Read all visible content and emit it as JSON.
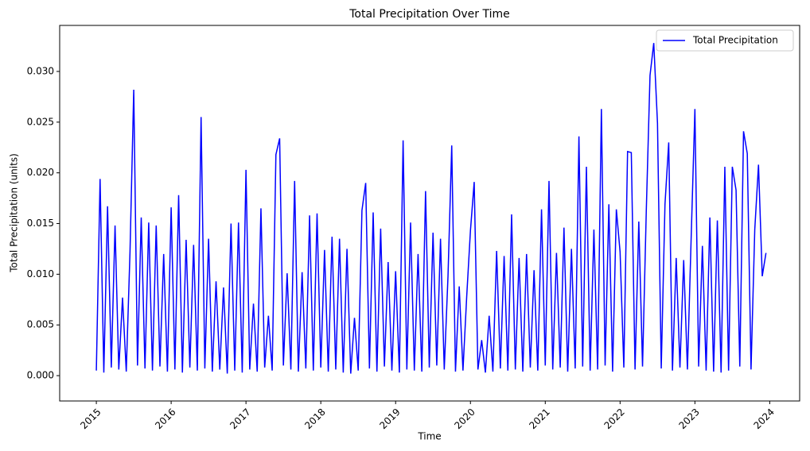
{
  "chart_data": {
    "type": "line",
    "title": "Total Precipitation Over Time",
    "x_label": "Time",
    "y_label": "Total Precipitation (units)",
    "x": [
      2015,
      2015.05,
      2015.1,
      2015.15,
      2015.2,
      2015.25,
      2015.3,
      2015.35,
      2015.4,
      2015.45,
      2015.5,
      2015.55,
      2015.6,
      2015.65,
      2015.7,
      2015.75,
      2015.8,
      2015.85,
      2015.9,
      2015.95,
      2016,
      2016.05,
      2016.1,
      2016.15,
      2016.2,
      2016.25,
      2016.3,
      2016.35,
      2016.4,
      2016.45,
      2016.5,
      2016.55,
      2016.6,
      2016.65,
      2016.7,
      2016.75,
      2016.8,
      2016.85,
      2016.9,
      2016.95,
      2017,
      2017.05,
      2017.1,
      2017.15,
      2017.2,
      2017.25,
      2017.3,
      2017.35,
      2017.4,
      2017.45,
      2017.5,
      2017.55,
      2017.6,
      2017.65,
      2017.7,
      2017.75,
      2017.8,
      2017.85,
      2017.9,
      2017.95,
      2018,
      2018.05,
      2018.1,
      2018.15,
      2018.2,
      2018.25,
      2018.3,
      2018.35,
      2018.4,
      2018.45,
      2018.5,
      2018.55,
      2018.6,
      2018.65,
      2018.7,
      2018.75,
      2018.8,
      2018.85,
      2018.9,
      2018.95,
      2019,
      2019.05,
      2019.1,
      2019.15,
      2019.2,
      2019.25,
      2019.3,
      2019.35,
      2019.4,
      2019.45,
      2019.5,
      2019.55,
      2019.6,
      2019.65,
      2019.7,
      2019.75,
      2019.8,
      2019.85,
      2019.9,
      2019.95,
      2020,
      2020.05,
      2020.1,
      2020.15,
      2020.2,
      2020.25,
      2020.3,
      2020.35,
      2020.4,
      2020.45,
      2020.5,
      2020.55,
      2020.6,
      2020.65,
      2020.7,
      2020.75,
      2020.8,
      2020.85,
      2020.9,
      2020.95,
      2021,
      2021.05,
      2021.1,
      2021.15,
      2021.2,
      2021.25,
      2021.3,
      2021.35,
      2021.4,
      2021.45,
      2021.5,
      2021.55,
      2021.6,
      2021.65,
      2021.7,
      2021.75,
      2021.8,
      2021.85,
      2021.9,
      2021.95,
      2022,
      2022.05,
      2022.1,
      2022.15,
      2022.2,
      2022.25,
      2022.3,
      2022.35,
      2022.4,
      2022.45,
      2022.5,
      2022.55,
      2022.6,
      2022.65,
      2022.7,
      2022.75,
      2022.8,
      2022.85,
      2022.9,
      2022.95,
      2023,
      2023.05,
      2023.1,
      2023.15,
      2023.2,
      2023.25,
      2023.3,
      2023.35,
      2023.4,
      2023.45,
      2023.5,
      2023.55,
      2023.6,
      2023.65,
      2023.7,
      2023.75,
      2023.8,
      2023.85,
      2023.9,
      2023.95
    ],
    "series": [
      {
        "name": "Total Precipitation",
        "color": "#0000ff",
        "values": [
          0.0005,
          0.0194,
          0.0003,
          0.0167,
          0.0008,
          0.0148,
          0.0006,
          0.0077,
          0.0004,
          0.0122,
          0.0282,
          0.001,
          0.0156,
          0.0007,
          0.0151,
          0.0005,
          0.0148,
          0.0009,
          0.012,
          0.0004,
          0.0166,
          0.0006,
          0.0178,
          0.0003,
          0.0134,
          0.0008,
          0.0129,
          0.0005,
          0.0255,
          0.0007,
          0.0135,
          0.0004,
          0.0093,
          0.0006,
          0.0087,
          0.0002,
          0.015,
          0.0005,
          0.0151,
          0.0003,
          0.0203,
          0.0006,
          0.0071,
          0.0004,
          0.0165,
          0.0008,
          0.0059,
          0.0005,
          0.0218,
          0.0234,
          0.001,
          0.0101,
          0.0006,
          0.0192,
          0.0004,
          0.0102,
          0.0007,
          0.0158,
          0.0005,
          0.016,
          0.0008,
          0.0124,
          0.0004,
          0.0137,
          0.0006,
          0.0135,
          0.0003,
          0.0125,
          0.0002,
          0.0057,
          0.0005,
          0.0163,
          0.019,
          0.0007,
          0.0161,
          0.0004,
          0.0145,
          0.0009,
          0.0112,
          0.0005,
          0.0103,
          0.0003,
          0.0232,
          0.0006,
          0.0151,
          0.0005,
          0.012,
          0.0004,
          0.0182,
          0.0008,
          0.0141,
          0.001,
          0.0135,
          0.0006,
          0.0098,
          0.0227,
          0.0004,
          0.0088,
          0.0005,
          0.0078,
          0.0143,
          0.0191,
          0.0006,
          0.0035,
          0.0003,
          0.0059,
          0.0004,
          0.0123,
          0.0007,
          0.0118,
          0.0005,
          0.0159,
          0.0006,
          0.0116,
          0.0004,
          0.012,
          0.0008,
          0.0104,
          0.0005,
          0.0164,
          0.001,
          0.0192,
          0.0006,
          0.0121,
          0.0008,
          0.0146,
          0.0004,
          0.0125,
          0.0007,
          0.0236,
          0.0009,
          0.0206,
          0.0005,
          0.0144,
          0.0006,
          0.0263,
          0.001,
          0.0169,
          0.0004,
          0.0164,
          0.0122,
          0.0008,
          0.0221,
          0.022,
          0.0006,
          0.0152,
          0.0009,
          0.0162,
          0.0296,
          0.0328,
          0.0249,
          0.0007,
          0.0169,
          0.023,
          0.0005,
          0.0116,
          0.0008,
          0.0114,
          0.0006,
          0.0136,
          0.0263,
          0.0009,
          0.0128,
          0.0005,
          0.0156,
          0.0004,
          0.0153,
          0.0003,
          0.0206,
          0.0005,
          0.0206,
          0.0183,
          0.0009,
          0.0241,
          0.0219,
          0.0006,
          0.0144,
          0.0208,
          0.0098,
          0.0121
        ]
      }
    ],
    "xlim": [
      2014.51,
      2024.4
    ],
    "xticks": [
      2015,
      2016,
      2017,
      2018,
      2019,
      2020,
      2021,
      2022,
      2023,
      2024
    ],
    "ylim": [
      -0.0025,
      0.03454
    ],
    "yticks": [
      {
        "value": 0,
        "label": "0.000"
      },
      {
        "value": 0.005,
        "label": "0.005"
      },
      {
        "value": 0.01,
        "label": "0.010"
      },
      {
        "value": 0.015,
        "label": "0.015"
      },
      {
        "value": 0.02,
        "label": "0.020"
      },
      {
        "value": 0.025,
        "label": "0.025"
      },
      {
        "value": 0.03,
        "label": "0.030"
      }
    ],
    "legend": "upper right"
  }
}
